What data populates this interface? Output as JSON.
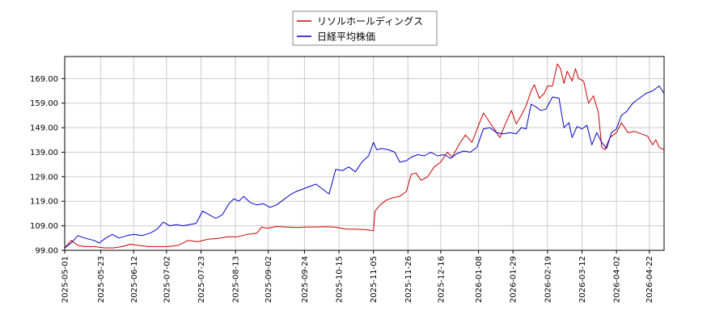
{
  "chart_data": {
    "type": "line",
    "title": "",
    "xlabel": "",
    "ylabel": "",
    "ylim": [
      99.0,
      178.0
    ],
    "xlim": [
      "2025-05-01",
      "2026-05-01"
    ],
    "grid": true,
    "legend_position": "top-center",
    "y_ticks": [
      99.0,
      109.0,
      119.0,
      129.0,
      139.0,
      149.0,
      159.0,
      169.0
    ],
    "y_tick_labels": [
      "99.00",
      "109.00",
      "119.00",
      "129.00",
      "139.00",
      "149.00",
      "159.00",
      "169.00"
    ],
    "x_ticks": [
      "2025-05-01",
      "2025-05-23",
      "2025-06-12",
      "2025-07-02",
      "2025-07-23",
      "2025-08-13",
      "2025-09-02",
      "2025-09-24",
      "2025-10-15",
      "2025-11-05",
      "2025-11-26",
      "2025-12-16",
      "2026-01-08",
      "2026-01-29",
      "2026-02-19",
      "2026-03-12",
      "2026-04-02",
      "2026-04-22"
    ],
    "series": [
      {
        "name": "リソルホールディングス",
        "color": "#cc0000",
        "points": [
          [
            "2025-05-01",
            100.0
          ],
          [
            "2025-05-05",
            103.0
          ],
          [
            "2025-05-09",
            101.0
          ],
          [
            "2025-05-13",
            100.5
          ],
          [
            "2025-05-19",
            100.5
          ],
          [
            "2025-05-25",
            100.0
          ],
          [
            "2025-05-31",
            100.0
          ],
          [
            "2025-06-05",
            100.5
          ],
          [
            "2025-06-10",
            101.5
          ],
          [
            "2025-06-15",
            101.0
          ],
          [
            "2025-06-21",
            100.5
          ],
          [
            "2025-06-27",
            100.5
          ],
          [
            "2025-07-03",
            100.5
          ],
          [
            "2025-07-09",
            101.0
          ],
          [
            "2025-07-15",
            103.0
          ],
          [
            "2025-07-21",
            102.5
          ],
          [
            "2025-07-27",
            103.5
          ],
          [
            "2025-08-02",
            103.8
          ],
          [
            "2025-08-08",
            104.5
          ],
          [
            "2025-08-14",
            104.5
          ],
          [
            "2025-08-20",
            105.5
          ],
          [
            "2025-08-26",
            106.0
          ],
          [
            "2025-08-29",
            108.5
          ],
          [
            "2025-09-01",
            108.0
          ],
          [
            "2025-09-07",
            108.7
          ],
          [
            "2025-09-13",
            108.5
          ],
          [
            "2025-09-19",
            108.3
          ],
          [
            "2025-09-25",
            108.5
          ],
          [
            "2025-10-01",
            108.5
          ],
          [
            "2025-10-07",
            108.6
          ],
          [
            "2025-10-13",
            108.4
          ],
          [
            "2025-10-19",
            107.7
          ],
          [
            "2025-10-25",
            107.6
          ],
          [
            "2025-10-31",
            107.5
          ],
          [
            "2025-11-05",
            107.0
          ],
          [
            "2025-11-06",
            115.0
          ],
          [
            "2025-11-09",
            117.5
          ],
          [
            "2025-11-13",
            119.5
          ],
          [
            "2025-11-17",
            120.5
          ],
          [
            "2025-11-21",
            121.0
          ],
          [
            "2025-11-25",
            123.0
          ],
          [
            "2025-11-28",
            130.0
          ],
          [
            "2025-12-01",
            130.5
          ],
          [
            "2025-12-04",
            127.5
          ],
          [
            "2025-12-08",
            129.0
          ],
          [
            "2025-12-12",
            133.0
          ],
          [
            "2025-12-16",
            135.0
          ],
          [
            "2025-12-20",
            139.0
          ],
          [
            "2025-12-23",
            137.0
          ],
          [
            "2025-12-27",
            142.0
          ],
          [
            "2025-12-31",
            146.0
          ],
          [
            "2026-01-04",
            143.0
          ],
          [
            "2026-01-08",
            150.0
          ],
          [
            "2026-01-11",
            155.0
          ],
          [
            "2026-01-15",
            151.0
          ],
          [
            "2026-01-19",
            147.0
          ],
          [
            "2026-01-21",
            145.0
          ],
          [
            "2026-01-24",
            150.0
          ],
          [
            "2026-01-28",
            156.0
          ],
          [
            "2026-01-31",
            150.5
          ],
          [
            "2026-02-03",
            154.0
          ],
          [
            "2026-02-06",
            158.0
          ],
          [
            "2026-02-09",
            164.0
          ],
          [
            "2026-02-11",
            166.5
          ],
          [
            "2026-02-14",
            161.0
          ],
          [
            "2026-02-17",
            163.0
          ],
          [
            "2026-02-19",
            166.0
          ],
          [
            "2026-02-22",
            166.0
          ],
          [
            "2026-02-25",
            175.0
          ],
          [
            "2026-02-27",
            173.0
          ],
          [
            "2026-03-01",
            167.0
          ],
          [
            "2026-03-03",
            172.0
          ],
          [
            "2026-03-06",
            168.0
          ],
          [
            "2026-03-08",
            173.0
          ],
          [
            "2026-03-10",
            169.0
          ],
          [
            "2026-03-13",
            168.0
          ],
          [
            "2026-03-16",
            159.0
          ],
          [
            "2026-03-19",
            162.0
          ],
          [
            "2026-03-22",
            155.0
          ],
          [
            "2026-03-24",
            141.0
          ],
          [
            "2026-03-26",
            140.0
          ],
          [
            "2026-03-29",
            145.0
          ],
          [
            "2026-04-02",
            147.0
          ],
          [
            "2026-04-05",
            151.0
          ],
          [
            "2026-04-09",
            147.0
          ],
          [
            "2026-04-13",
            147.5
          ],
          [
            "2026-04-17",
            146.5
          ],
          [
            "2026-04-21",
            145.5
          ],
          [
            "2026-04-24",
            142.0
          ],
          [
            "2026-04-26",
            144.0
          ],
          [
            "2026-04-28",
            141.0
          ],
          [
            "2026-05-01",
            140.0
          ]
        ]
      },
      {
        "name": "日経平均株価",
        "color": "#0000cc",
        "points": [
          [
            "2025-05-01",
            100.0
          ],
          [
            "2025-05-05",
            102.0
          ],
          [
            "2025-05-09",
            105.0
          ],
          [
            "2025-05-13",
            104.0
          ],
          [
            "2025-05-19",
            103.0
          ],
          [
            "2025-05-22",
            102.0
          ],
          [
            "2025-05-26",
            104.0
          ],
          [
            "2025-05-30",
            105.5
          ],
          [
            "2025-06-03",
            104.0
          ],
          [
            "2025-06-08",
            105.0
          ],
          [
            "2025-06-12",
            105.5
          ],
          [
            "2025-06-17",
            105.0
          ],
          [
            "2025-06-22",
            106.0
          ],
          [
            "2025-06-26",
            107.5
          ],
          [
            "2025-06-30",
            110.5
          ],
          [
            "2025-07-04",
            109.0
          ],
          [
            "2025-07-08",
            109.5
          ],
          [
            "2025-07-12",
            109.0
          ],
          [
            "2025-07-16",
            109.5
          ],
          [
            "2025-07-20",
            110.0
          ],
          [
            "2025-07-24",
            115.0
          ],
          [
            "2025-07-28",
            113.5
          ],
          [
            "2025-08-01",
            112.0
          ],
          [
            "2025-08-05",
            113.5
          ],
          [
            "2025-08-09",
            118.0
          ],
          [
            "2025-08-12",
            120.0
          ],
          [
            "2025-08-15",
            119.0
          ],
          [
            "2025-08-18",
            121.0
          ],
          [
            "2025-08-22",
            118.5
          ],
          [
            "2025-08-26",
            117.5
          ],
          [
            "2025-08-30",
            118.0
          ],
          [
            "2025-09-03",
            116.5
          ],
          [
            "2025-09-07",
            117.5
          ],
          [
            "2025-09-11",
            119.5
          ],
          [
            "2025-09-15",
            121.5
          ],
          [
            "2025-09-19",
            123.0
          ],
          [
            "2025-09-23",
            124.0
          ],
          [
            "2025-09-27",
            125.0
          ],
          [
            "2025-10-01",
            126.0
          ],
          [
            "2025-10-05",
            124.0
          ],
          [
            "2025-10-09",
            122.0
          ],
          [
            "2025-10-13",
            132.0
          ],
          [
            "2025-10-17",
            131.5
          ],
          [
            "2025-10-21",
            133.0
          ],
          [
            "2025-10-25",
            131.0
          ],
          [
            "2025-10-29",
            135.0
          ],
          [
            "2025-11-02",
            137.5
          ],
          [
            "2025-11-05",
            143.0
          ],
          [
            "2025-11-07",
            140.0
          ],
          [
            "2025-11-10",
            140.5
          ],
          [
            "2025-11-14",
            140.0
          ],
          [
            "2025-11-18",
            139.0
          ],
          [
            "2025-11-21",
            135.0
          ],
          [
            "2025-11-25",
            135.5
          ],
          [
            "2025-11-28",
            137.0
          ],
          [
            "2025-12-02",
            138.0
          ],
          [
            "2025-12-06",
            137.5
          ],
          [
            "2025-12-10",
            139.0
          ],
          [
            "2025-12-14",
            137.5
          ],
          [
            "2025-12-18",
            138.0
          ],
          [
            "2025-12-22",
            136.5
          ],
          [
            "2025-12-26",
            138.5
          ],
          [
            "2025-12-30",
            139.5
          ],
          [
            "2026-01-03",
            139.0
          ],
          [
            "2026-01-07",
            141.0
          ],
          [
            "2026-01-11",
            148.5
          ],
          [
            "2026-01-15",
            149.0
          ],
          [
            "2026-01-19",
            147.0
          ],
          [
            "2026-01-23",
            146.5
          ],
          [
            "2026-01-27",
            147.0
          ],
          [
            "2026-01-31",
            146.5
          ],
          [
            "2026-02-03",
            149.0
          ],
          [
            "2026-02-06",
            148.5
          ],
          [
            "2026-02-09",
            158.5
          ],
          [
            "2026-02-12",
            157.5
          ],
          [
            "2026-02-15",
            156.0
          ],
          [
            "2026-02-18",
            156.5
          ],
          [
            "2026-02-22",
            161.5
          ],
          [
            "2026-02-26",
            161.0
          ],
          [
            "2026-03-01",
            149.0
          ],
          [
            "2026-03-04",
            151.0
          ],
          [
            "2026-03-06",
            145.0
          ],
          [
            "2026-03-09",
            149.5
          ],
          [
            "2026-03-12",
            148.5
          ],
          [
            "2026-03-15",
            150.0
          ],
          [
            "2026-03-18",
            142.0
          ],
          [
            "2026-03-21",
            147.0
          ],
          [
            "2026-03-24",
            143.0
          ],
          [
            "2026-03-27",
            140.5
          ],
          [
            "2026-03-30",
            147.0
          ],
          [
            "2026-04-02",
            148.5
          ],
          [
            "2026-04-05",
            154.0
          ],
          [
            "2026-04-08",
            155.5
          ],
          [
            "2026-04-12",
            159.0
          ],
          [
            "2026-04-16",
            161.0
          ],
          [
            "2026-04-20",
            163.0
          ],
          [
            "2026-04-24",
            164.0
          ],
          [
            "2026-04-28",
            166.0
          ],
          [
            "2026-05-01",
            163.0
          ]
        ]
      }
    ]
  }
}
